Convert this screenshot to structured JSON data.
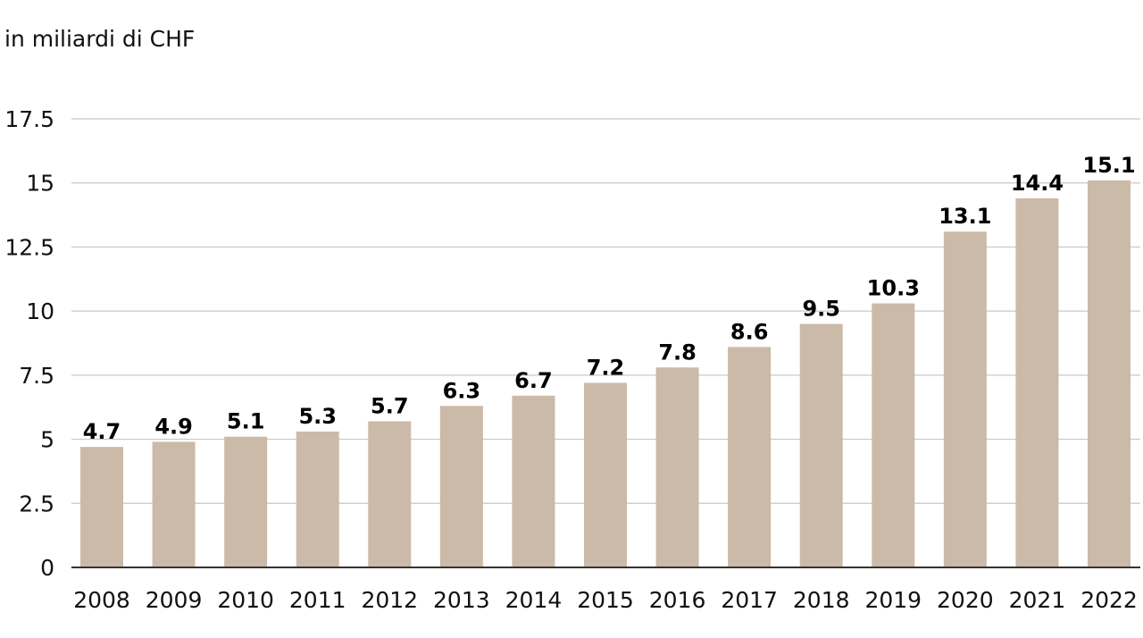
{
  "chart_data": {
    "type": "bar",
    "unit_label": "in miliardi di CHF",
    "categories": [
      "2008",
      "2009",
      "2010",
      "2011",
      "2012",
      "2013",
      "2014",
      "2015",
      "2016",
      "2017",
      "2018",
      "2019",
      "2020",
      "2021",
      "2022"
    ],
    "values": [
      4.7,
      4.9,
      5.1,
      5.3,
      5.7,
      6.3,
      6.7,
      7.2,
      7.8,
      8.6,
      9.5,
      10.3,
      13.1,
      14.4,
      15.1
    ],
    "data_labels": [
      "4.7",
      "4.9",
      "5.1",
      "5.3",
      "5.7",
      "6.3",
      "6.7",
      "7.2",
      "7.8",
      "8.6",
      "9.5",
      "10.3",
      "13.1",
      "14.4",
      "15.1"
    ],
    "yticks": [
      0,
      2.5,
      5,
      7.5,
      10,
      12.5,
      15,
      17.5
    ],
    "ytick_labels": [
      "0",
      "2.5",
      "5",
      "7.5",
      "10",
      "12.5",
      "15",
      "17.5"
    ],
    "ylim": [
      0,
      17.5
    ],
    "grid": true,
    "legend": "none",
    "colors": {
      "bar": "#cbbaa8",
      "grid": "#c8c8c8",
      "axis": "#333333"
    }
  }
}
